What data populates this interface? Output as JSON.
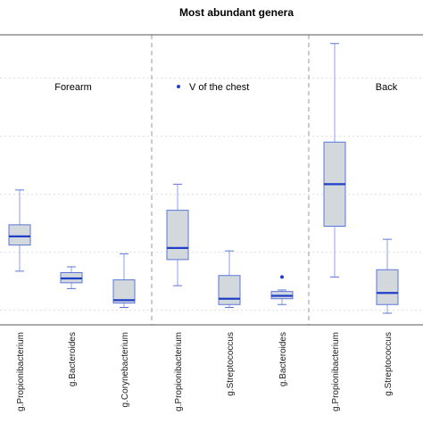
{
  "chart_data": {
    "type": "boxplot",
    "title": "Most abundant genera",
    "panels": [
      {
        "label": "Forearm",
        "boxes": [
          {
            "category": "g.Propionibacterium",
            "whisker_low": 0.135,
            "q1": 0.225,
            "median": 0.255,
            "q3": 0.295,
            "whisker_high": 0.415,
            "outliers": []
          },
          {
            "category": "g.Bacteroides",
            "whisker_low": 0.075,
            "q1": 0.095,
            "median": 0.11,
            "q3": 0.13,
            "whisker_high": 0.15,
            "outliers": []
          },
          {
            "category": "g.Corynebacterium",
            "whisker_low": 0.01,
            "q1": 0.025,
            "median": 0.035,
            "q3": 0.105,
            "whisker_high": 0.195,
            "outliers": []
          }
        ]
      },
      {
        "label": "V of the chest",
        "legend_marker": true,
        "boxes": [
          {
            "category": "g.Propionibacterium",
            "whisker_low": 0.085,
            "q1": 0.175,
            "median": 0.215,
            "q3": 0.345,
            "whisker_high": 0.435,
            "outliers": []
          },
          {
            "category": "g.Streptococcus",
            "whisker_low": 0.01,
            "q1": 0.02,
            "median": 0.04,
            "q3": 0.12,
            "whisker_high": 0.205,
            "outliers": []
          },
          {
            "category": "g.Bacteroides",
            "whisker_low": 0.02,
            "q1": 0.04,
            "median": 0.05,
            "q3": 0.065,
            "whisker_high": 0.07,
            "outliers": [
              0.115
            ]
          }
        ]
      },
      {
        "label": "Back",
        "boxes": [
          {
            "category": "g.Propionibacterium",
            "whisker_low": 0.115,
            "q1": 0.29,
            "median": 0.435,
            "q3": 0.58,
            "whisker_high": 0.92,
            "outliers": []
          },
          {
            "category": "g.Streptococcus",
            "whisker_low": -0.01,
            "q1": 0.02,
            "median": 0.06,
            "q3": 0.14,
            "whisker_high": 0.245,
            "outliers": []
          }
        ]
      }
    ],
    "ylim": [
      -0.05,
      0.95
    ],
    "grid": "horizontal dashed",
    "colors": {
      "box_fill": "#d3d8dc",
      "box_border": "#5a76d8",
      "median": "#1f3fc9",
      "whisker": "#8ea2e8",
      "outlier": "#1f3fc9",
      "separator": "#9a9a9a",
      "grid": "#d2d2d2",
      "axis": "#555555"
    }
  }
}
